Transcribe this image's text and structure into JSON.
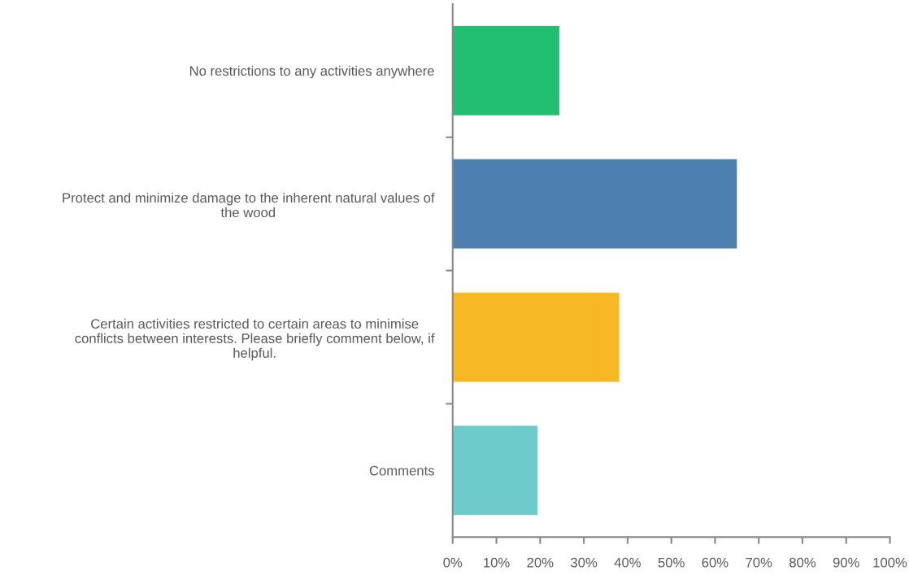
{
  "chart_data": {
    "type": "bar",
    "orientation": "horizontal",
    "categories": [
      "No restrictions to any activities anywhere",
      "Protect and minimize damage to the inherent natural values of\nthe wood",
      "Certain activities restricted to certain areas to minimise\nconflicts between interests. Please briefly comment below, if\nhelpful.",
      "Comments"
    ],
    "values": [
      24.4,
      65.0,
      38.1,
      19.4
    ],
    "colors": [
      "#22bf73",
      "#4d7fb1",
      "#f6b824",
      "#6ecbcb"
    ],
    "xlim": [
      0,
      100
    ],
    "xticks": [
      {
        "value": 0,
        "label": "0%"
      },
      {
        "value": 10,
        "label": "10%"
      },
      {
        "value": 20,
        "label": "20%"
      },
      {
        "value": 30,
        "label": "30%"
      },
      {
        "value": 40,
        "label": "40%"
      },
      {
        "value": 50,
        "label": "50%"
      },
      {
        "value": 60,
        "label": "60%"
      },
      {
        "value": 70,
        "label": "70%"
      },
      {
        "value": 80,
        "label": "80%"
      },
      {
        "value": 90,
        "label": "90%"
      },
      {
        "value": 100,
        "label": "100%"
      }
    ],
    "grid": false,
    "legend": false
  }
}
